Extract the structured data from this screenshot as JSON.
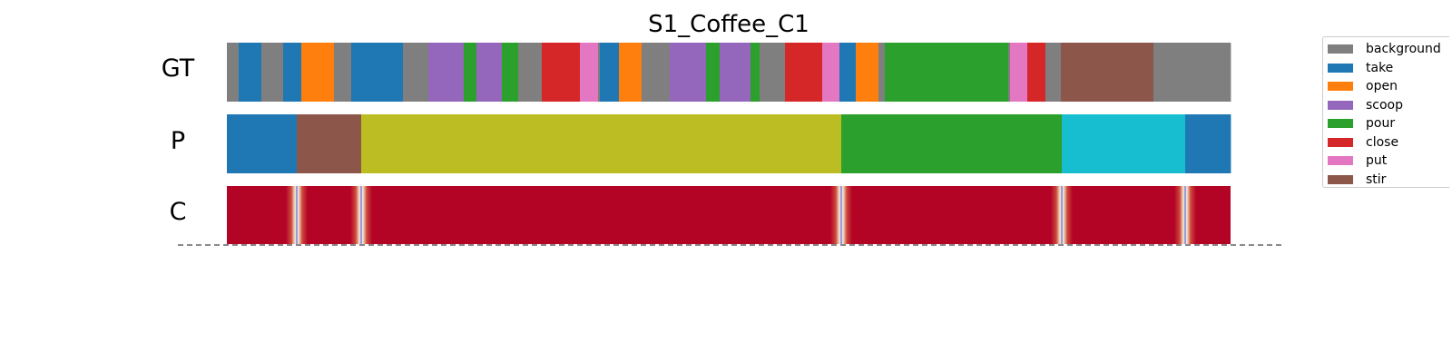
{
  "chart_data": {
    "type": "segmentation",
    "title": "S1_Coffee_C1",
    "rows": [
      "GT",
      "P",
      "C"
    ],
    "x_range": [
      0,
      1106
    ],
    "legend": {
      "placement": "top-right",
      "entries": [
        {
          "label": "background",
          "color": "#7f7f7f"
        },
        {
          "label": "take",
          "color": "#1f77b4"
        },
        {
          "label": "open",
          "color": "#ff7f0e"
        },
        {
          "label": "scoop",
          "color": "#9467bd"
        },
        {
          "label": "pour",
          "color": "#2ca02c"
        },
        {
          "label": "close",
          "color": "#d62728"
        },
        {
          "label": "put",
          "color": "#e377c2"
        },
        {
          "label": "stir",
          "color": "#8c564b"
        }
      ]
    },
    "extra_colors": {
      "olive": "#bcbd22",
      "cyan": "#17becf",
      "confidence": "#b40426",
      "boundary": "#3b4cc0"
    },
    "gt_segments": [
      {
        "start": 0,
        "end": 13,
        "color": "#7f7f7f"
      },
      {
        "start": 13,
        "end": 38,
        "color": "#1f77b4"
      },
      {
        "start": 38,
        "end": 62,
        "color": "#7f7f7f"
      },
      {
        "start": 62,
        "end": 82,
        "color": "#1f77b4"
      },
      {
        "start": 82,
        "end": 118,
        "color": "#ff7f0e"
      },
      {
        "start": 118,
        "end": 137,
        "color": "#7f7f7f"
      },
      {
        "start": 137,
        "end": 194,
        "color": "#1f77b4"
      },
      {
        "start": 194,
        "end": 222,
        "color": "#7f7f7f"
      },
      {
        "start": 222,
        "end": 261,
        "color": "#9467bd"
      },
      {
        "start": 261,
        "end": 275,
        "color": "#2ca02c"
      },
      {
        "start": 275,
        "end": 303,
        "color": "#9467bd"
      },
      {
        "start": 303,
        "end": 321,
        "color": "#2ca02c"
      },
      {
        "start": 321,
        "end": 347,
        "color": "#7f7f7f"
      },
      {
        "start": 347,
        "end": 389,
        "color": "#d62728"
      },
      {
        "start": 389,
        "end": 409,
        "color": "#e377c2"
      },
      {
        "start": 409,
        "end": 411,
        "color": "#7f7f7f"
      },
      {
        "start": 411,
        "end": 432,
        "color": "#1f77b4"
      },
      {
        "start": 432,
        "end": 457,
        "color": "#ff7f0e"
      },
      {
        "start": 457,
        "end": 488,
        "color": "#7f7f7f"
      },
      {
        "start": 488,
        "end": 528,
        "color": "#9467bd"
      },
      {
        "start": 528,
        "end": 543,
        "color": "#2ca02c"
      },
      {
        "start": 543,
        "end": 577,
        "color": "#9467bd"
      },
      {
        "start": 577,
        "end": 587,
        "color": "#2ca02c"
      },
      {
        "start": 587,
        "end": 615,
        "color": "#7f7f7f"
      },
      {
        "start": 615,
        "end": 656,
        "color": "#d62728"
      },
      {
        "start": 656,
        "end": 675,
        "color": "#e377c2"
      },
      {
        "start": 675,
        "end": 693,
        "color": "#1f77b4"
      },
      {
        "start": 693,
        "end": 718,
        "color": "#ff7f0e"
      },
      {
        "start": 718,
        "end": 725,
        "color": "#7f7f7f"
      },
      {
        "start": 725,
        "end": 861,
        "color": "#2ca02c"
      },
      {
        "start": 861,
        "end": 863,
        "color": "#7f7f7f"
      },
      {
        "start": 863,
        "end": 882,
        "color": "#e377c2"
      },
      {
        "start": 882,
        "end": 902,
        "color": "#d62728"
      },
      {
        "start": 902,
        "end": 919,
        "color": "#7f7f7f"
      },
      {
        "start": 919,
        "end": 1021,
        "color": "#8c564b"
      },
      {
        "start": 1021,
        "end": 1106,
        "color": "#7f7f7f"
      }
    ],
    "p_segments": [
      {
        "start": 0,
        "end": 77,
        "color": "#1f77b4"
      },
      {
        "start": 77,
        "end": 148,
        "color": "#8c564b"
      },
      {
        "start": 148,
        "end": 677,
        "color": "#bcbd22"
      },
      {
        "start": 677,
        "end": 920,
        "color": "#2ca02c"
      },
      {
        "start": 920,
        "end": 1056,
        "color": "#17becf"
      },
      {
        "start": 1056,
        "end": 1106,
        "color": "#1f77b4"
      }
    ],
    "c_boundaries": [
      77,
      148,
      677,
      920,
      1056
    ]
  }
}
